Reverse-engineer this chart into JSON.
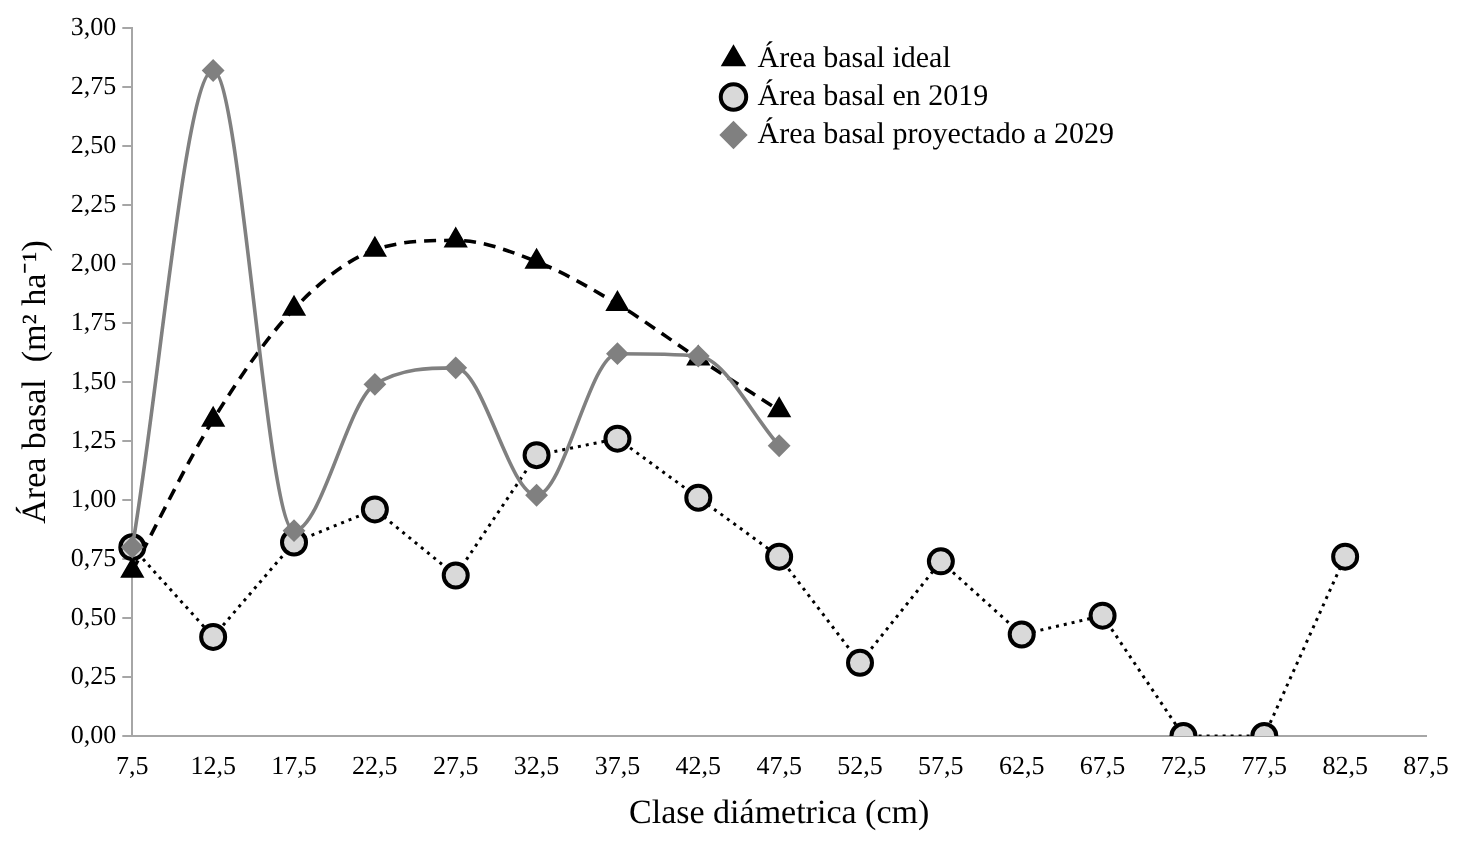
{
  "chart_data": {
    "type": "line",
    "xlabel": "Clase diámetrica (cm)",
    "ylabel": "Área basal  (m² ha⁻¹)",
    "categories": [
      "7,5",
      "12,5",
      "17,5",
      "22,5",
      "27,5",
      "32,5",
      "37,5",
      "42,5",
      "47,5",
      "52,5",
      "57,5",
      "62,5",
      "67,5",
      "72,5",
      "77,5",
      "82,5",
      "87,5"
    ],
    "ylim": [
      0,
      3
    ],
    "yticks": [
      {
        "value": 0,
        "label": "0,00"
      },
      {
        "value": 0.25,
        "label": "0,25"
      },
      {
        "value": 0.5,
        "label": "0,50"
      },
      {
        "value": 0.75,
        "label": "0,75"
      },
      {
        "value": 1,
        "label": "1,00"
      },
      {
        "value": 1.25,
        "label": "1,25"
      },
      {
        "value": 1.5,
        "label": "1,50"
      },
      {
        "value": 1.75,
        "label": "1,75"
      },
      {
        "value": 2,
        "label": "2,00"
      },
      {
        "value": 2.25,
        "label": "2,25"
      },
      {
        "value": 2.5,
        "label": "2,50"
      },
      {
        "value": 2.75,
        "label": "2,75"
      },
      {
        "value": 3,
        "label": "3,00"
      }
    ],
    "grid": false,
    "legend": "top right",
    "series": [
      {
        "name": "Área basal ideal",
        "color": "#000000",
        "marker": "triangle",
        "line_style": "dashed",
        "values": [
          0.7,
          1.34,
          1.81,
          2.06,
          2.1,
          2.01,
          1.83,
          1.6,
          1.38,
          null,
          null,
          null,
          null,
          null,
          null,
          null,
          null
        ]
      },
      {
        "name": "Área basal en 2019",
        "color": "#d9d9d9",
        "marker": "circle",
        "line_style": "dotted",
        "values": [
          0.8,
          0.42,
          0.82,
          0.96,
          0.68,
          1.19,
          1.26,
          1.01,
          0.76,
          0.31,
          0.74,
          0.43,
          0.51,
          0,
          0,
          0.76,
          null
        ]
      },
      {
        "name": "Área basal proyectado a 2029",
        "color": "#808080",
        "marker": "diamond",
        "line_style": "solid",
        "values": [
          0.8,
          2.82,
          0.87,
          1.49,
          1.56,
          1.02,
          1.62,
          1.61,
          1.23,
          null,
          null,
          null,
          null,
          null,
          null,
          null,
          null
        ]
      }
    ]
  }
}
